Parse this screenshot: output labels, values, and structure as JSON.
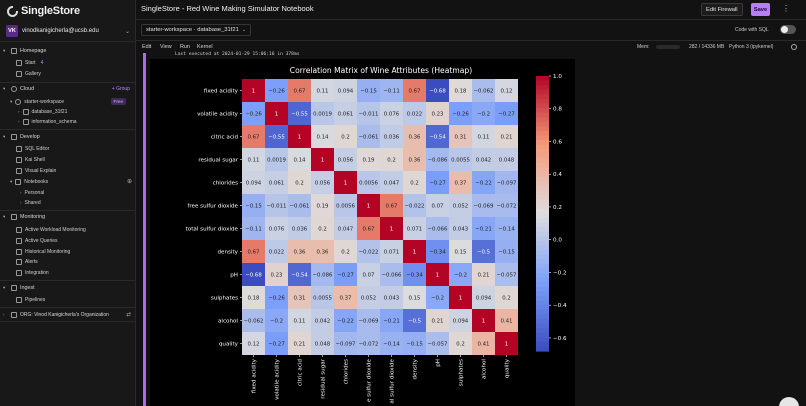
{
  "app": {
    "logo_text": "SingleStore"
  },
  "user": {
    "initials": "VK",
    "email": "vinodkanigicherla@ucsb.edu"
  },
  "sidebar": {
    "homepage": {
      "label": "Homepage",
      "items": [
        {
          "label": "Start",
          "badge": "4"
        },
        {
          "label": "Gallery"
        }
      ]
    },
    "cloud": {
      "label": "Cloud",
      "group_button": "+ Group",
      "workspace": {
        "label": "starter-workspace",
        "badge": "Free"
      },
      "databases": [
        "database_31f21",
        "information_schema"
      ]
    },
    "develop": {
      "label": "Develop",
      "items": [
        "SQL Editor",
        "Kai Shell",
        "Visual Explain"
      ],
      "notebooks": {
        "label": "Notebooks",
        "children": [
          "Personal",
          "Shared"
        ]
      }
    },
    "monitoring": {
      "label": "Monitoring",
      "items": [
        "Active Workload Monitoring",
        "Active Queries",
        "Historical Monitoring",
        "Alerts",
        "Integration"
      ]
    },
    "ingest": {
      "label": "Ingest",
      "items": [
        "Pipelines"
      ]
    },
    "org": {
      "label": "ORG: Vinod Kanigicherla's Organization"
    }
  },
  "topbar": {
    "title": "SingleStore - Red Wine Making Simulator Notebook",
    "firewall_label": "Edit Firewall",
    "save_label": "Save",
    "more_label": "⋮"
  },
  "workspace_select": {
    "value": "starter-workspace · database_31f21",
    "sql_toggle_label": "Code with SQL"
  },
  "menu": {
    "items": [
      "Edit",
      "View",
      "Run",
      "Kernel"
    ],
    "mem_label": "Mem:",
    "mem_value": "282 / 14336 MB",
    "kernel": "Python 3 (ipykernel)"
  },
  "cell": {
    "exec_info": "Last executed at 2024-01-29 15:06:16 in 378ms"
  },
  "chart_data": {
    "type": "heatmap",
    "title": "Correlation Matrix of Wine Attributes (Heatmap)",
    "labels": [
      "fixed acidity",
      "volatile acidity",
      "citric acid",
      "residual sugar",
      "chlorides",
      "free sulfur dioxide",
      "total sulfur dioxide",
      "density",
      "pH",
      "sulphates",
      "alcohol",
      "quality"
    ],
    "x_tick_labels": [
      "fixed acidity",
      "volatile acidity",
      "citric acid",
      "residual sugar",
      "chlorides",
      "e sulfur dioxide",
      "al sulfur dioxide",
      "density",
      "pH",
      "sulphates",
      "alcohol",
      "quality"
    ],
    "matrix": [
      [
        1,
        -0.26,
        0.67,
        0.11,
        0.094,
        -0.15,
        -0.11,
        0.67,
        -0.68,
        0.18,
        -0.062,
        0.12
      ],
      [
        -0.26,
        1,
        -0.55,
        0.0019,
        0.061,
        -0.011,
        0.076,
        0.022,
        0.23,
        -0.26,
        -0.2,
        -0.27
      ],
      [
        0.67,
        -0.55,
        1,
        0.14,
        0.2,
        -0.061,
        0.036,
        0.36,
        -0.54,
        0.31,
        0.11,
        0.21
      ],
      [
        0.11,
        0.0019,
        0.14,
        1,
        0.056,
        0.19,
        0.2,
        0.36,
        -0.086,
        0.0055,
        0.042,
        0.048
      ],
      [
        0.094,
        0.061,
        0.2,
        0.056,
        1,
        0.0056,
        0.047,
        0.2,
        -0.27,
        0.37,
        -0.22,
        -0.097
      ],
      [
        -0.15,
        -0.011,
        -0.061,
        0.19,
        0.0056,
        1,
        0.67,
        -0.022,
        0.07,
        0.052,
        -0.069,
        -0.072
      ],
      [
        -0.11,
        0.076,
        0.036,
        0.2,
        0.047,
        0.67,
        1,
        0.071,
        -0.066,
        0.043,
        -0.21,
        -0.14
      ],
      [
        0.67,
        0.022,
        0.36,
        0.36,
        0.2,
        -0.022,
        0.071,
        1,
        -0.34,
        0.15,
        -0.5,
        -0.15
      ],
      [
        -0.68,
        0.23,
        -0.54,
        -0.086,
        -0.27,
        0.07,
        -0.066,
        -0.34,
        1,
        -0.2,
        0.21,
        -0.057
      ],
      [
        0.18,
        -0.26,
        0.31,
        0.0055,
        0.37,
        0.052,
        0.043,
        0.15,
        -0.2,
        1,
        0.094,
        0.2
      ],
      [
        -0.062,
        -0.2,
        0.11,
        0.042,
        -0.22,
        -0.069,
        -0.21,
        -0.5,
        0.21,
        0.094,
        1,
        0.41
      ],
      [
        0.12,
        -0.27,
        0.21,
        0.048,
        -0.097,
        -0.072,
        -0.14,
        -0.15,
        -0.057,
        0.2,
        0.41,
        1
      ]
    ],
    "colormap": "coolwarm",
    "vmin": -0.68,
    "vmax": 1.0,
    "colorbar_ticks": [
      "1.0",
      "0.8",
      "0.6",
      "0.4",
      "0.2",
      "0.0",
      "−0.2",
      "−0.4",
      "−0.6"
    ],
    "colorbar_tick_values": [
      1.0,
      0.8,
      0.6,
      0.4,
      0.2,
      0.0,
      -0.2,
      -0.4,
      -0.6
    ]
  },
  "colors": {
    "accent": "#b77ff7",
    "cell_bar": "#a76ce8"
  }
}
